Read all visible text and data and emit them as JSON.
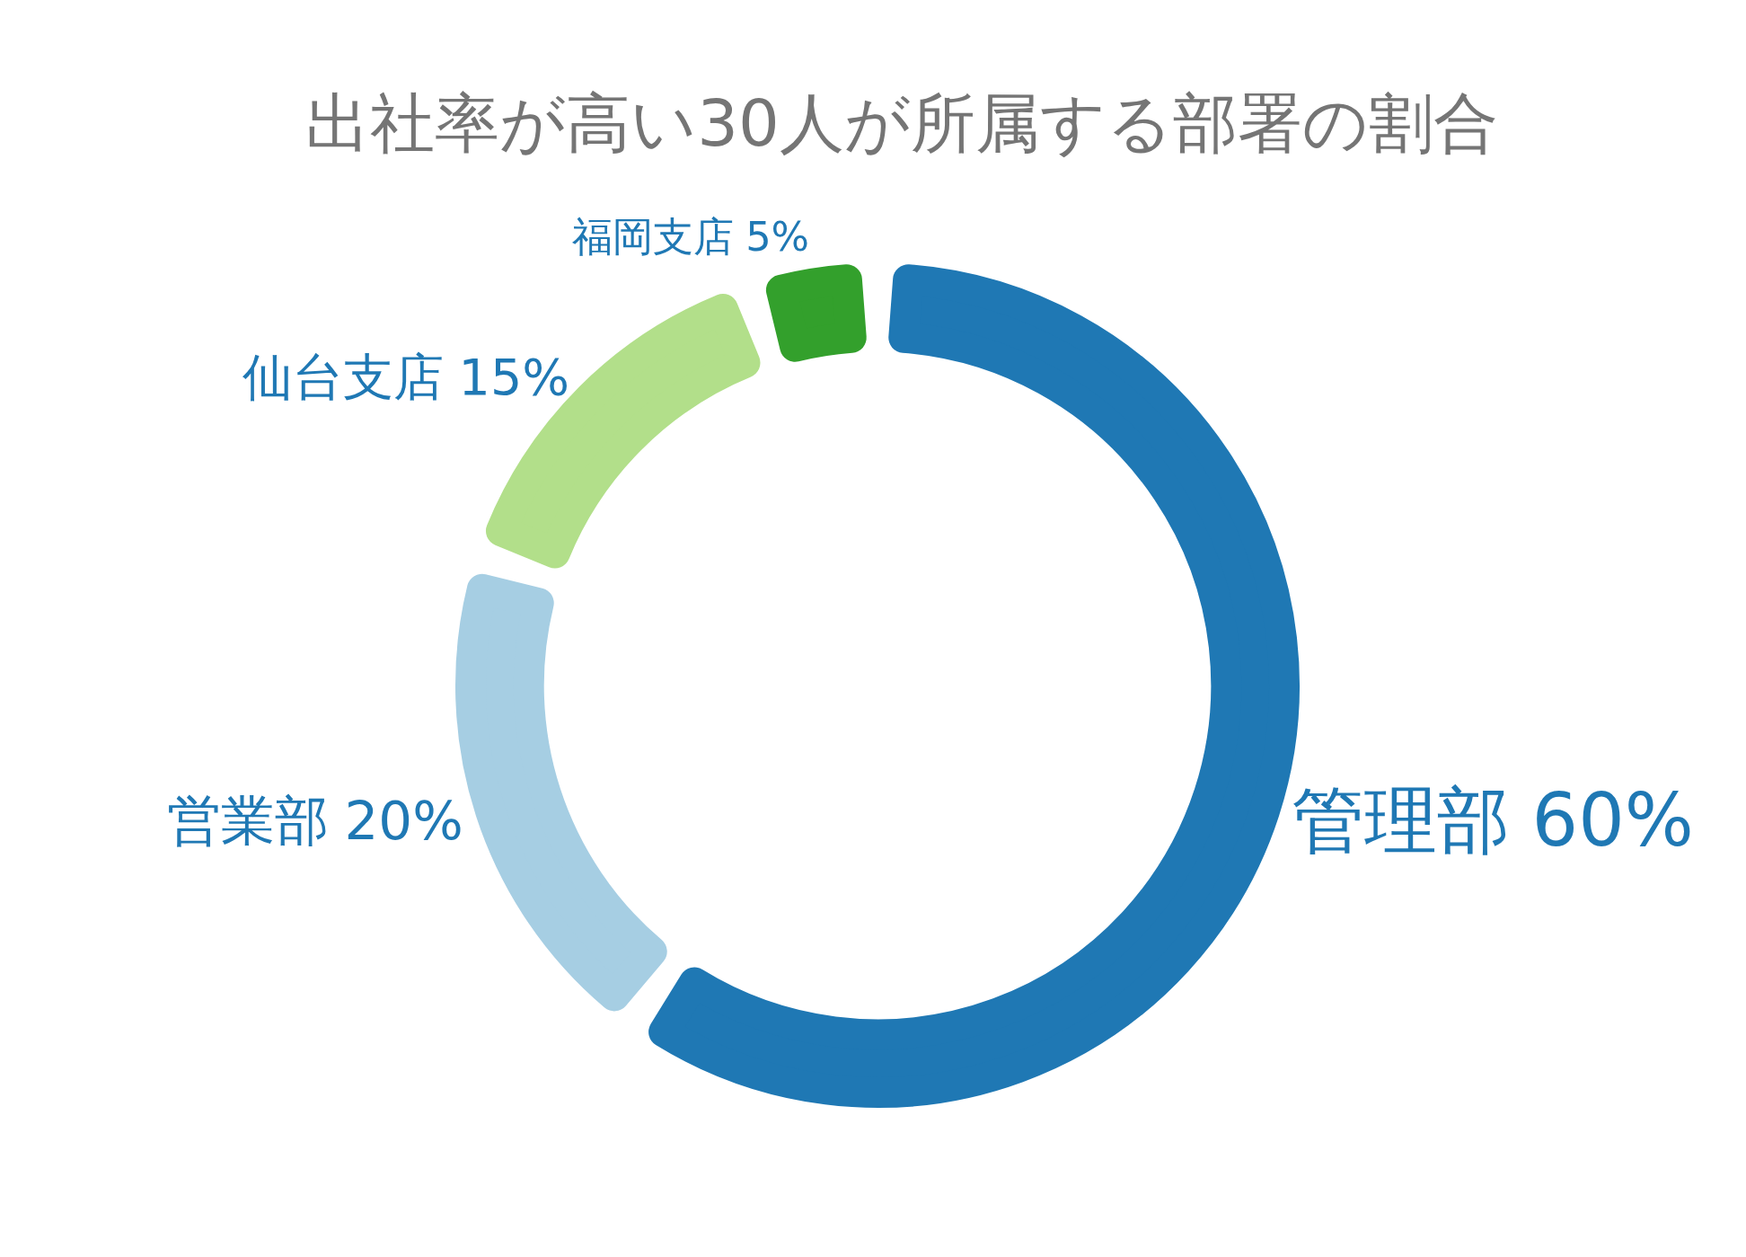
{
  "chart_data": {
    "type": "donut",
    "title": "出社率が高い30人が所属する部署の割合",
    "categories": [
      "管理部",
      "営業部",
      "仙台支店",
      "福岡支店"
    ],
    "values": [
      60,
      20,
      15,
      5
    ],
    "colors": [
      "#1f78b4",
      "#a6cee3",
      "#b2df8a",
      "#33a02c"
    ],
    "value_labels": [
      "60%",
      "20%",
      "15%",
      "5%"
    ]
  }
}
